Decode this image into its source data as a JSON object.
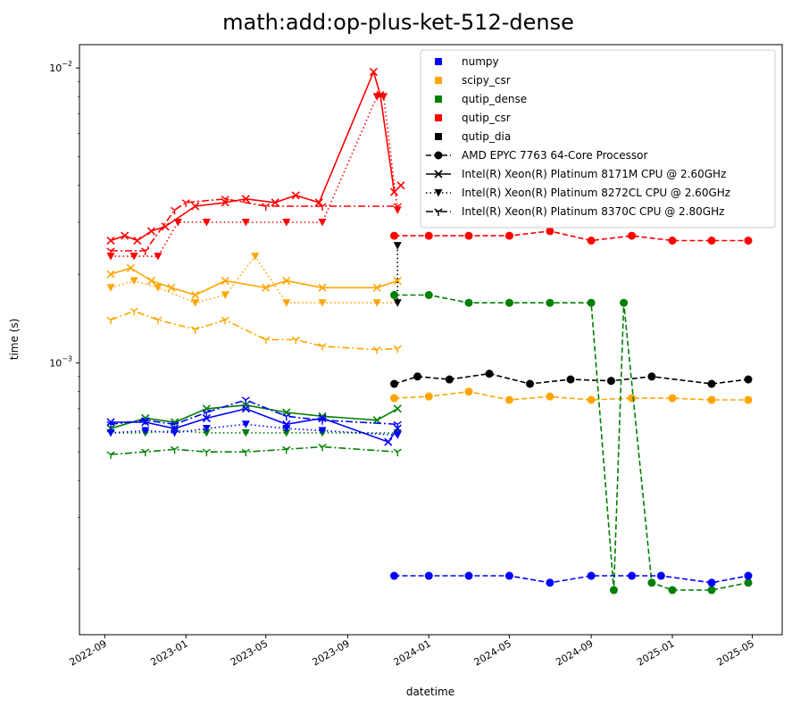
{
  "chart_data": {
    "type": "scatter",
    "title": "math:add:op-plus-ket-512-dense",
    "xlabel": "datetime",
    "ylabel": "time (s)",
    "yscale": "log",
    "x_range": [
      "2022-07-25",
      "2025-06-15"
    ],
    "y_range": [
      0.00012,
      0.012
    ],
    "x_ticks": [
      "2022-09",
      "2023-01",
      "2023-05",
      "2023-09",
      "2024-01",
      "2024-05",
      "2024-09",
      "2025-01",
      "2025-05"
    ],
    "x_tick_dates": [
      "2022-09-01",
      "2023-01-01",
      "2023-05-01",
      "2023-09-01",
      "2024-01-01",
      "2024-05-01",
      "2024-09-01",
      "2025-01-01",
      "2025-05-01"
    ],
    "y_ticks": [
      {
        "value": 0.001,
        "base": "10",
        "exp": "−3"
      },
      {
        "value": 0.01,
        "base": "10",
        "exp": "−2"
      }
    ],
    "legend": {
      "location": "upper right",
      "libraries": [
        {
          "name": "numpy",
          "color": "#0000ff"
        },
        {
          "name": "scipy_csr",
          "color": "#ffa500"
        },
        {
          "name": "qutip_dense",
          "color": "#008000"
        },
        {
          "name": "qutip_csr",
          "color": "#ff0000"
        },
        {
          "name": "qutip_dia",
          "color": "#000000"
        }
      ],
      "cpus": [
        {
          "name": "AMD EPYC 7763 64-Core Processor",
          "linestyle": "dashed",
          "marker": "circle"
        },
        {
          "name": "Intel(R) Xeon(R) Platinum 8171M CPU @ 2.60GHz",
          "linestyle": "solid",
          "marker": "x"
        },
        {
          "name": "Intel(R) Xeon(R) Platinum 8272CL CPU @ 2.60GHz",
          "linestyle": "dotted",
          "marker": "triangle-down"
        },
        {
          "name": "Intel(R) Xeon(R) Platinum 8370C CPU @ 2.80GHz",
          "linestyle": "dashdot",
          "marker": "tri-down"
        }
      ]
    },
    "series": [
      {
        "library": "qutip_csr",
        "cpu": "Intel(R) Xeon(R) Platinum 8171M CPU @ 2.60GHz",
        "color": "#ff0000",
        "x": [
          "2022-09-10",
          "2022-10-01",
          "2022-10-20",
          "2022-11-10",
          "2022-12-01",
          "2023-01-15",
          "2023-03-01",
          "2023-04-01",
          "2023-05-15",
          "2023-06-15",
          "2023-07-20",
          "2023-10-10",
          "2023-10-20",
          "2023-11-10",
          "2023-11-20"
        ],
        "y": [
          0.0026,
          0.0027,
          0.0026,
          0.0028,
          0.0029,
          0.0034,
          0.0035,
          0.0036,
          0.0035,
          0.0037,
          0.0035,
          0.0097,
          0.0081,
          0.0038,
          0.004
        ]
      },
      {
        "library": "qutip_csr",
        "cpu": "Intel(R) Xeon(R) Platinum 8272CL CPU @ 2.60GHz",
        "color": "#ff0000",
        "x": [
          "2022-09-10",
          "2022-10-15",
          "2022-11-20",
          "2022-12-20",
          "2023-02-01",
          "2023-04-01",
          "2023-06-01",
          "2023-07-25",
          "2023-10-15",
          "2023-10-25",
          "2023-11-15"
        ],
        "y": [
          0.0023,
          0.0023,
          0.0023,
          0.003,
          0.003,
          0.003,
          0.003,
          0.003,
          0.008,
          0.008,
          0.0033
        ]
      },
      {
        "library": "qutip_csr",
        "cpu": "Intel(R) Xeon(R) Platinum 8370C CPU @ 2.80GHz",
        "color": "#ff0000",
        "x": [
          "2022-09-10",
          "2022-11-01",
          "2022-12-15",
          "2023-01-01",
          "2023-03-01",
          "2023-05-01",
          "2023-07-25",
          "2023-11-15"
        ],
        "y": [
          0.0024,
          0.0024,
          0.0033,
          0.0035,
          0.0036,
          0.0034,
          0.0034,
          0.0034
        ]
      },
      {
        "library": "qutip_csr",
        "cpu": "AMD EPYC 7763 64-Core Processor",
        "color": "#ff0000",
        "x": [
          "2023-11-10",
          "2024-01-01",
          "2024-03-01",
          "2024-05-01",
          "2024-07-01",
          "2024-09-01",
          "2024-11-01",
          "2025-01-01",
          "2025-03-01",
          "2025-04-25"
        ],
        "y": [
          0.0027,
          0.0027,
          0.0027,
          0.0027,
          0.0028,
          0.0026,
          0.0027,
          0.0026,
          0.0026,
          0.0026
        ]
      },
      {
        "library": "scipy_csr",
        "cpu": "Intel(R) Xeon(R) Platinum 8171M CPU @ 2.60GHz",
        "color": "#ffa500",
        "x": [
          "2022-09-10",
          "2022-10-10",
          "2022-11-10",
          "2022-12-10",
          "2023-01-15",
          "2023-03-01",
          "2023-05-01",
          "2023-06-01",
          "2023-07-25",
          "2023-10-15",
          "2023-11-15"
        ],
        "y": [
          0.002,
          0.0021,
          0.0019,
          0.0018,
          0.0017,
          0.0019,
          0.0018,
          0.0019,
          0.0018,
          0.0018,
          0.0019
        ]
      },
      {
        "library": "scipy_csr",
        "cpu": "Intel(R) Xeon(R) Platinum 8272CL CPU @ 2.60GHz",
        "color": "#ffa500",
        "x": [
          "2022-09-10",
          "2022-10-15",
          "2022-11-20",
          "2023-01-15",
          "2023-03-01",
          "2023-04-15",
          "2023-06-01",
          "2023-07-25",
          "2023-10-15",
          "2023-11-15"
        ],
        "y": [
          0.0018,
          0.0019,
          0.0018,
          0.0016,
          0.0017,
          0.0023,
          0.0016,
          0.0016,
          0.0016,
          0.0016
        ]
      },
      {
        "library": "scipy_csr",
        "cpu": "Intel(R) Xeon(R) Platinum 8370C CPU @ 2.80GHz",
        "color": "#ffa500",
        "x": [
          "2022-09-10",
          "2022-10-15",
          "2022-11-20",
          "2023-01-15",
          "2023-03-01",
          "2023-05-01",
          "2023-06-15",
          "2023-07-25",
          "2023-10-15",
          "2023-11-15"
        ],
        "y": [
          0.0014,
          0.0015,
          0.0014,
          0.0013,
          0.0014,
          0.0012,
          0.0012,
          0.00114,
          0.00111,
          0.00112
        ]
      },
      {
        "library": "scipy_csr",
        "cpu": "AMD EPYC 7763 64-Core Processor",
        "color": "#ffa500",
        "x": [
          "2023-11-10",
          "2024-01-01",
          "2024-03-01",
          "2024-05-01",
          "2024-07-01",
          "2024-09-01",
          "2024-11-01",
          "2025-01-01",
          "2025-03-01",
          "2025-04-25"
        ],
        "y": [
          0.00076,
          0.00077,
          0.0008,
          0.00075,
          0.00077,
          0.00075,
          0.00076,
          0.00076,
          0.00075,
          0.00075
        ]
      },
      {
        "library": "qutip_dia",
        "cpu": "AMD EPYC 7763 64-Core Processor",
        "color": "#000000",
        "x": [
          "2023-11-10",
          "2023-12-15",
          "2024-02-01",
          "2024-04-01",
          "2024-06-01",
          "2024-08-01",
          "2024-10-01",
          "2024-12-01",
          "2025-03-01",
          "2025-04-25"
        ],
        "y": [
          0.00085,
          0.0009,
          0.00088,
          0.00092,
          0.00085,
          0.00088,
          0.00087,
          0.0009,
          0.00085,
          0.00088
        ]
      },
      {
        "library": "qutip_dia",
        "cpu": "Intel(R) Xeon(R) Platinum 8272CL CPU @ 2.60GHz",
        "color": "#000000",
        "x": [
          "2023-11-15",
          "2023-11-15"
        ],
        "y": [
          0.0025,
          0.0016
        ]
      },
      {
        "library": "qutip_dense",
        "cpu": "Intel(R) Xeon(R) Platinum 8171M CPU @ 2.60GHz",
        "color": "#008000",
        "x": [
          "2022-09-10",
          "2022-11-01",
          "2022-12-15",
          "2023-02-01",
          "2023-04-01",
          "2023-06-01",
          "2023-07-25",
          "2023-10-15",
          "2023-11-15"
        ],
        "y": [
          0.0006,
          0.00065,
          0.00063,
          0.0007,
          0.00072,
          0.00068,
          0.00066,
          0.00064,
          0.0007
        ]
      },
      {
        "library": "qutip_dense",
        "cpu": "Intel(R) Xeon(R) Platinum 8272CL CPU @ 2.60GHz",
        "color": "#008000",
        "x": [
          "2022-09-10",
          "2022-11-01",
          "2022-12-15",
          "2023-02-01",
          "2023-04-01",
          "2023-06-01",
          "2023-07-25",
          "2023-11-15"
        ],
        "y": [
          0.00058,
          0.00058,
          0.00059,
          0.00058,
          0.00058,
          0.00058,
          0.00058,
          0.00058
        ]
      },
      {
        "library": "qutip_dense",
        "cpu": "Intel(R) Xeon(R) Platinum 8370C CPU @ 2.80GHz",
        "color": "#008000",
        "x": [
          "2022-09-10",
          "2022-11-01",
          "2022-12-15",
          "2023-02-01",
          "2023-04-01",
          "2023-06-01",
          "2023-07-25",
          "2023-11-15"
        ],
        "y": [
          0.00049,
          0.0005,
          0.00051,
          0.0005,
          0.0005,
          0.00051,
          0.00052,
          0.0005
        ]
      },
      {
        "library": "qutip_dense",
        "cpu": "AMD EPYC 7763 64-Core Processor",
        "color": "#008000",
        "x": [
          "2023-11-10",
          "2024-01-01",
          "2024-03-01",
          "2024-05-01",
          "2024-07-01",
          "2024-09-01",
          "2024-10-05",
          "2024-10-20",
          "2024-12-01",
          "2025-01-01",
          "2025-03-01",
          "2025-04-25"
        ],
        "y": [
          0.0017,
          0.0017,
          0.0016,
          0.0016,
          0.0016,
          0.0016,
          0.00017,
          0.0016,
          0.00018,
          0.00017,
          0.00017,
          0.00018
        ]
      },
      {
        "library": "numpy",
        "cpu": "Intel(R) Xeon(R) Platinum 8171M CPU @ 2.60GHz",
        "color": "#0000ff",
        "x": [
          "2022-09-10",
          "2022-11-01",
          "2022-12-15",
          "2023-02-01",
          "2023-04-01",
          "2023-06-01",
          "2023-07-25",
          "2023-11-01",
          "2023-11-15"
        ],
        "y": [
          0.00063,
          0.00063,
          0.0006,
          0.00065,
          0.0007,
          0.00062,
          0.00065,
          0.00054,
          0.0006
        ]
      },
      {
        "library": "numpy",
        "cpu": "Intel(R) Xeon(R) Platinum 8272CL CPU @ 2.60GHz",
        "color": "#0000ff",
        "x": [
          "2022-09-10",
          "2022-11-01",
          "2022-12-15",
          "2023-02-01",
          "2023-04-01",
          "2023-06-01",
          "2023-07-25",
          "2023-11-15"
        ],
        "y": [
          0.00058,
          0.00059,
          0.00058,
          0.0006,
          0.00062,
          0.0006,
          0.00059,
          0.00057
        ]
      },
      {
        "library": "numpy",
        "cpu": "Intel(R) Xeon(R) Platinum 8370C CPU @ 2.80GHz",
        "color": "#0000ff",
        "x": [
          "2022-09-10",
          "2022-11-01",
          "2022-12-15",
          "2023-02-01",
          "2023-04-01",
          "2023-06-01",
          "2023-07-25",
          "2023-11-15"
        ],
        "y": [
          0.00062,
          0.00064,
          0.00062,
          0.00068,
          0.00075,
          0.00066,
          0.00064,
          0.00062
        ]
      },
      {
        "library": "numpy",
        "cpu": "AMD EPYC 7763 64-Core Processor",
        "color": "#0000ff",
        "x": [
          "2023-11-10",
          "2024-01-01",
          "2024-03-01",
          "2024-05-01",
          "2024-07-01",
          "2024-09-01",
          "2024-11-01",
          "2024-12-15",
          "2025-03-01",
          "2025-04-25"
        ],
        "y": [
          0.00019,
          0.00019,
          0.00019,
          0.00019,
          0.00018,
          0.00019,
          0.00019,
          0.00019,
          0.00018,
          0.00019
        ]
      }
    ]
  }
}
